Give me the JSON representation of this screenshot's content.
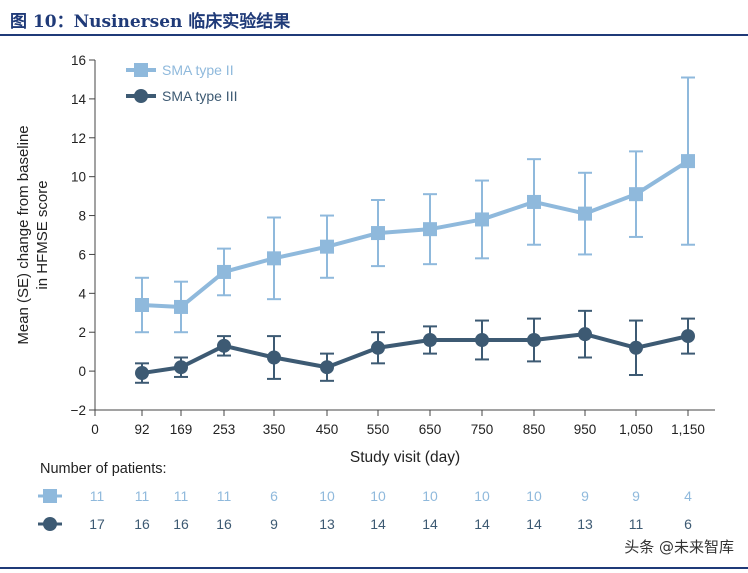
{
  "figure": {
    "title": "图 10：Nusinersen 临床实验结果",
    "watermark": "头条 @未来智库"
  },
  "colors": {
    "type2": "#8fb9dc",
    "type3": "#3d5a73",
    "header": "#1f3a78",
    "axis": "#444444"
  },
  "chart_data": {
    "type": "line",
    "xlabel": "Study visit (day)",
    "ylabel_lines": [
      "Mean (SE) change from baseline",
      "in HFMSE score"
    ],
    "ylim": [
      -2,
      16
    ],
    "yticks": [
      -2,
      0,
      2,
      4,
      6,
      8,
      10,
      12,
      14,
      16
    ],
    "x_origin_label": "0",
    "categories": [
      "92",
      "169",
      "253",
      "350",
      "450",
      "550",
      "650",
      "750",
      "850",
      "950",
      "1,050",
      "1,150"
    ],
    "legend_position": "top-left",
    "series": [
      {
        "name": "SMA type II",
        "marker": "square",
        "color_key": "type2",
        "values": [
          3.4,
          3.3,
          5.1,
          5.8,
          6.4,
          7.1,
          7.3,
          7.8,
          8.7,
          8.1,
          9.1,
          10.8
        ],
        "error_low": [
          2.0,
          2.0,
          3.9,
          3.7,
          4.8,
          5.4,
          5.5,
          5.8,
          6.5,
          6.0,
          6.9,
          6.5
        ],
        "error_high": [
          4.8,
          4.6,
          6.3,
          7.9,
          8.0,
          8.8,
          9.1,
          9.8,
          10.9,
          10.2,
          11.3,
          15.1
        ]
      },
      {
        "name": "SMA type III",
        "marker": "circle",
        "color_key": "type3",
        "values": [
          -0.1,
          0.2,
          1.3,
          0.7,
          0.2,
          1.2,
          1.6,
          1.6,
          1.6,
          1.9,
          1.2,
          1.8
        ],
        "error_low": [
          -0.6,
          -0.3,
          0.8,
          -0.4,
          -0.5,
          0.4,
          0.9,
          0.6,
          0.5,
          0.7,
          -0.2,
          0.9
        ],
        "error_high": [
          0.4,
          0.7,
          1.8,
          1.8,
          0.9,
          2.0,
          2.3,
          2.6,
          2.7,
          3.1,
          2.6,
          2.7
        ]
      }
    ],
    "patients": {
      "label": "Number of patients:",
      "type2": [
        "11",
        "11",
        "11",
        "11",
        "6",
        "10",
        "10",
        "10",
        "10",
        "10",
        "9",
        "9",
        "4"
      ],
      "type3": [
        "17",
        "16",
        "16",
        "16",
        "9",
        "13",
        "14",
        "14",
        "14",
        "14",
        "13",
        "11",
        "6"
      ]
    }
  }
}
